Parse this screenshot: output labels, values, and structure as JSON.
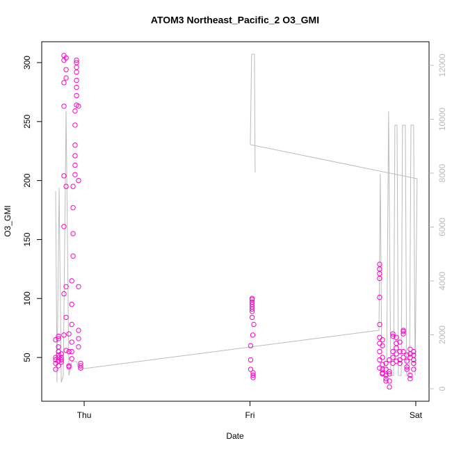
{
  "chart_data": {
    "type": "scatter",
    "title": "ATOM3 Northeast_Pacific_2 O3_GMI",
    "x_label": "Date",
    "y_label": "O3_GMI",
    "xlim": [
      -0.256,
      2.08
    ],
    "xticks": [
      {
        "value": 0,
        "label": "Thu"
      },
      {
        "value": 1,
        "label": "Fri"
      },
      {
        "value": 2,
        "label": "Sat"
      }
    ],
    "ylim": [
      12.9,
      317.7
    ],
    "yticks": [
      50,
      100,
      150,
      200,
      250,
      300
    ],
    "y2lim": [
      -464,
      12877
    ],
    "y2ticks": [
      0,
      2000,
      4000,
      6000,
      8000,
      10000,
      12000
    ],
    "series": [
      {
        "type": "scatter",
        "color": "#ff00cc",
        "x": [
          -0.172,
          -0.172,
          -0.172,
          -0.172,
          -0.172,
          -0.155,
          -0.155,
          -0.155,
          -0.155,
          -0.155,
          -0.155,
          -0.155,
          -0.155,
          -0.138,
          -0.138,
          -0.138,
          -0.138,
          -0.122,
          -0.122,
          -0.122,
          -0.122,
          -0.122,
          -0.122,
          -0.122,
          -0.122,
          -0.109,
          -0.109,
          -0.109,
          -0.109,
          -0.109,
          -0.109,
          -0.109,
          -0.092,
          -0.092,
          -0.092,
          -0.092,
          -0.075,
          -0.075,
          -0.075,
          -0.075,
          -0.075,
          -0.075,
          -0.067,
          -0.067,
          -0.067,
          -0.067,
          -0.055,
          -0.055,
          -0.055,
          -0.055,
          -0.055,
          -0.055,
          -0.046,
          -0.046,
          -0.046,
          -0.046,
          -0.046,
          -0.046,
          -0.046,
          -0.046,
          -0.034,
          -0.034,
          -0.034,
          -0.034,
          -0.034,
          -0.034,
          -0.021,
          -0.021,
          -0.021,
          1.013,
          1.013,
          1.013,
          1.013,
          1.013,
          1.013,
          1.013,
          1.013,
          1.023,
          1.017,
          1.004,
          1.004,
          1.004,
          1.019,
          1.019,
          1.019,
          1.782,
          1.782,
          1.782,
          1.782,
          1.782,
          1.782,
          1.782,
          1.782,
          1.782,
          1.782,
          1.782,
          1.799,
          1.799,
          1.799,
          1.799,
          1.799,
          1.799,
          1.799,
          1.82,
          1.82,
          1.82,
          1.82,
          1.82,
          1.841,
          1.841,
          1.841,
          1.841,
          1.841,
          1.862,
          1.862,
          1.862,
          1.862,
          1.862,
          1.883,
          1.883,
          1.883,
          1.883,
          1.883,
          1.904,
          1.904,
          1.904,
          1.904,
          1.925,
          1.925,
          1.925,
          1.925,
          1.925,
          1.946,
          1.946,
          1.946,
          1.946,
          1.966,
          1.966,
          1.966,
          1.966,
          1.966,
          1.987,
          1.987,
          1.987,
          1.987,
          1.987
        ],
        "values": [
          65,
          50,
          48,
          45,
          40,
          68,
          66,
          59,
          55,
          52,
          50,
          47,
          43,
          50,
          48,
          46,
          53,
          306,
          302,
          283,
          263,
          204,
          161,
          104,
          69,
          304,
          294,
          287,
          195,
          110,
          84,
          56,
          42,
          43,
          55,
          70,
          115,
          95,
          78,
          63,
          55,
          49,
          195,
          177,
          155,
          136,
          259,
          247,
          230,
          221,
          213,
          205,
          302,
          300,
          296,
          292,
          285,
          279,
          272,
          264,
          263,
          200,
          110,
          73,
          66,
          59,
          45,
          43,
          41,
          100,
          99,
          97,
          95,
          93,
          91,
          89,
          84,
          78,
          69,
          60,
          48,
          40,
          37,
          35,
          33,
          129,
          125,
          121,
          117,
          101,
          78,
          67,
          62,
          55,
          48,
          41,
          65,
          60,
          50,
          44,
          40,
          37,
          36,
          45,
          40,
          35,
          32,
          30,
          38,
          36,
          30,
          25,
          48,
          55,
          50,
          45,
          70,
          68,
          67,
          62,
          58,
          53,
          47,
          45,
          48,
          55,
          63,
          73,
          72,
          70,
          55,
          50,
          42,
          40,
          47,
          52,
          57,
          53,
          50,
          35,
          32,
          55,
          52,
          48,
          45,
          40
        ]
      },
      {
        "type": "line",
        "axis": "y2",
        "color": "#bbbbbb",
        "x": [
          -0.172,
          -0.164,
          -0.151,
          -0.138,
          -0.126,
          -0.109,
          -0.092,
          -0.075,
          -0.059,
          -0.046,
          -0.034,
          -0.017,
          0,
          1.778,
          1.786,
          1.795,
          1.807,
          1.824,
          1.836,
          1.849,
          1.866,
          1.874,
          1.887,
          1.895,
          1.912,
          1.92,
          1.937,
          1.945,
          1.962,
          1.971,
          1.987,
          1.996,
          2.008,
          1.002,
          1.01,
          1.027,
          1.031
        ],
        "values": [
          7329,
          232,
          7458,
          232,
          490,
          10297,
          490,
          1006,
          1006,
          1006,
          748,
          748,
          748,
          2168,
          7974,
          490,
          490,
          490,
          10297,
          490,
          490,
          9781,
          9781,
          490,
          490,
          9781,
          9781,
          490,
          490,
          9781,
          9781,
          490,
          7794,
          9058,
          12413,
          12413,
          8026
        ]
      }
    ]
  }
}
